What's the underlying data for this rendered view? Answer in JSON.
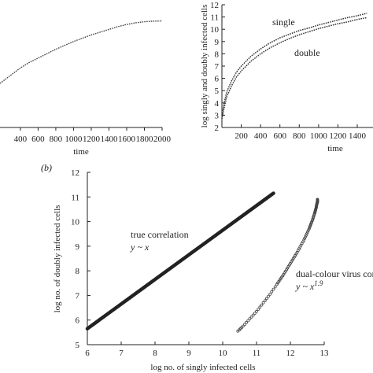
{
  "chart_data": [
    {
      "type": "line",
      "panel": "",
      "xlabel": "time",
      "ylabel": "",
      "xlim": [
        170,
        2000
      ],
      "x_ticks": [
        "400",
        "600",
        "800",
        "1000",
        "1200",
        "1400",
        "1600",
        "1800",
        "2000"
      ],
      "series": [
        {
          "x": [
            170,
            300,
            400,
            500,
            600,
            700,
            800,
            900,
            1000,
            1100,
            1200,
            1300,
            1400,
            1500,
            1600,
            1700,
            1800,
            1900,
            2000
          ],
          "y": [
            0.4,
            0.48,
            0.54,
            0.59,
            0.63,
            0.67,
            0.71,
            0.745,
            0.78,
            0.81,
            0.84,
            0.865,
            0.89,
            0.915,
            0.935,
            0.95,
            0.96,
            0.965,
            0.967
          ]
        }
      ]
    },
    {
      "type": "line",
      "panel": "",
      "xlabel": "time",
      "ylabel": "log singly and doubly infected cells",
      "xlim": [
        0,
        1500
      ],
      "ylim": [
        2,
        12
      ],
      "x_ticks": [
        "200",
        "400",
        "600",
        "800",
        "1000",
        "1200",
        "1400"
      ],
      "y_ticks": [
        "2",
        "3",
        "4",
        "5",
        "6",
        "7",
        "8",
        "9",
        "10",
        "11",
        "12"
      ],
      "series": [
        {
          "name": "single",
          "x": [
            0,
            20,
            50,
            100,
            150,
            200,
            300,
            400,
            500,
            600,
            700,
            800,
            900,
            1000,
            1100,
            1200,
            1300,
            1400,
            1500
          ],
          "y": [
            3.0,
            3.9,
            4.9,
            5.8,
            6.5,
            7.0,
            7.8,
            8.4,
            8.9,
            9.3,
            9.6,
            9.9,
            10.1,
            10.35,
            10.55,
            10.75,
            10.95,
            11.1,
            11.3
          ]
        },
        {
          "name": "double",
          "x": [
            0,
            20,
            50,
            100,
            150,
            200,
            300,
            400,
            500,
            600,
            700,
            800,
            900,
            1000,
            1100,
            1200,
            1300,
            1400,
            1500
          ],
          "y": [
            2.7,
            3.5,
            4.5,
            5.4,
            6.1,
            6.6,
            7.4,
            8.0,
            8.5,
            8.9,
            9.25,
            9.55,
            9.8,
            10.05,
            10.25,
            10.45,
            10.6,
            10.8,
            10.95
          ]
        }
      ],
      "annotations": [
        "single",
        "double"
      ]
    },
    {
      "type": "scatter",
      "panel": "(b)",
      "xlabel": "log no. of singly infected cells",
      "ylabel": "log no. of doubly infected cells",
      "xlim": [
        6,
        13
      ],
      "ylim": [
        5,
        12
      ],
      "x_ticks": [
        "6",
        "7",
        "8",
        "9",
        "10",
        "11",
        "12",
        "13"
      ],
      "y_ticks": [
        "5",
        "6",
        "7",
        "8",
        "9",
        "10",
        "11",
        "12"
      ],
      "series": [
        {
          "name": "true correlation",
          "relation": "y ~ x",
          "x_range": [
            6.0,
            11.5
          ],
          "y_range": [
            5.65,
            11.15
          ]
        },
        {
          "name": "dual-colour virus correlation",
          "relation": "y ~ x^1.9",
          "x": [
            10.45,
            10.6,
            10.8,
            11.0,
            11.2,
            11.4,
            11.6,
            11.8,
            12.0,
            12.2,
            12.4,
            12.55,
            12.65,
            12.72,
            12.76,
            12.78,
            12.8,
            12.8
          ],
          "y": [
            5.55,
            5.75,
            6.05,
            6.35,
            6.7,
            7.05,
            7.45,
            7.85,
            8.3,
            8.75,
            9.25,
            9.7,
            10.05,
            10.35,
            10.55,
            10.7,
            10.8,
            10.9
          ]
        }
      ],
      "annotations": {
        "label_true": "true correlation",
        "formula_true": "y ~ x",
        "label_dual": "dual-colour virus cor",
        "formula_dual_base": "y ~ x",
        "formula_dual_exp": "1.9"
      }
    }
  ]
}
